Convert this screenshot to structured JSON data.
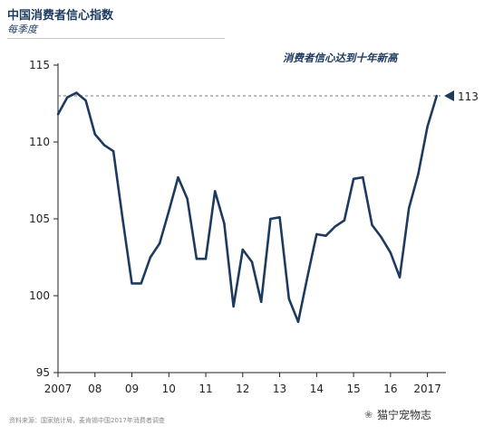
{
  "header": {
    "title": "中国消费者信心指数",
    "subtitle": "每季度"
  },
  "annotation": {
    "text": "消费者信心达到十年新高",
    "value_label": "113",
    "value": 113
  },
  "footer": {
    "source": "资料来源：国家统计局，麦肯锡中国2017年消费者调查",
    "watermark": "猫宁宠物志"
  },
  "colors": {
    "series": "#1d3a5f",
    "reference_line": "#777777",
    "axis": "#222222"
  },
  "chart_data": {
    "type": "line",
    "title": "中国消费者信心指数",
    "subtitle": "每季度",
    "ylim": [
      95,
      115
    ],
    "yticks": [
      95,
      100,
      105,
      110,
      115
    ],
    "xlim": [
      2007,
      2017.5
    ],
    "xticks": [
      {
        "value": 2007,
        "label": "2007"
      },
      {
        "value": 2008,
        "label": "08"
      },
      {
        "value": 2009,
        "label": "09"
      },
      {
        "value": 2010,
        "label": "10"
      },
      {
        "value": 2011,
        "label": "11"
      },
      {
        "value": 2012,
        "label": "12"
      },
      {
        "value": 2013,
        "label": "13"
      },
      {
        "value": 2014,
        "label": "14"
      },
      {
        "value": 2015,
        "label": "15"
      },
      {
        "value": 2016,
        "label": "16"
      },
      {
        "value": 2017,
        "label": "2017"
      }
    ],
    "reference_line": 113,
    "grid": false,
    "x": [
      2007.0,
      2007.25,
      2007.5,
      2007.75,
      2008.0,
      2008.25,
      2008.5,
      2008.75,
      2009.0,
      2009.25,
      2009.5,
      2009.75,
      2010.0,
      2010.25,
      2010.5,
      2010.75,
      2011.0,
      2011.25,
      2011.5,
      2011.75,
      2012.0,
      2012.25,
      2012.5,
      2012.75,
      2013.0,
      2013.25,
      2013.5,
      2013.75,
      2014.0,
      2014.25,
      2014.5,
      2014.75,
      2015.0,
      2015.25,
      2015.5,
      2015.75,
      2016.0,
      2016.25,
      2016.5,
      2016.75,
      2017.0,
      2017.25
    ],
    "y": [
      111.8,
      112.9,
      113.2,
      112.7,
      110.5,
      109.8,
      109.4,
      105.0,
      100.8,
      100.8,
      102.5,
      103.4,
      105.5,
      107.7,
      106.3,
      102.4,
      102.4,
      106.8,
      104.7,
      99.3,
      103.0,
      102.2,
      99.6,
      105.0,
      105.1,
      99.8,
      98.3,
      101.2,
      104.0,
      103.9,
      104.5,
      104.9,
      107.6,
      107.7,
      104.6,
      103.8,
      102.8,
      101.2,
      105.7,
      107.9,
      111.0,
      113.0
    ]
  }
}
